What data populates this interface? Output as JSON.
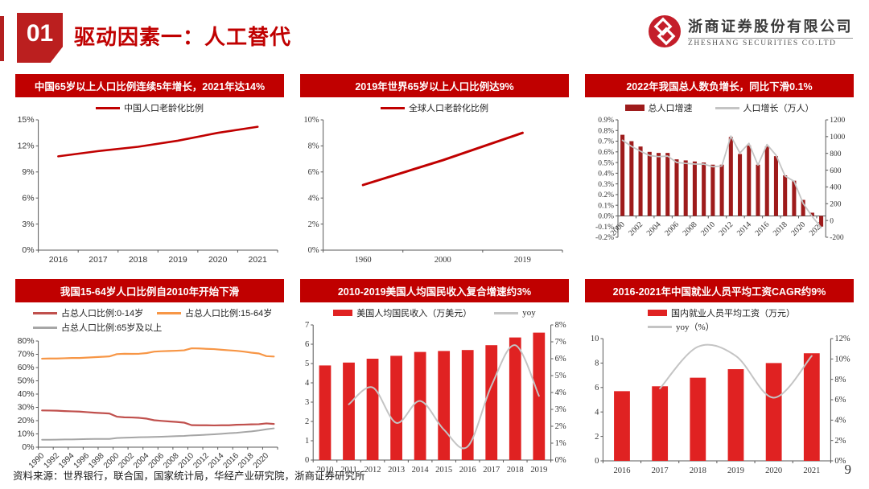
{
  "header": {
    "badge": "01",
    "title": "驱动因素一：人工替代"
  },
  "logo": {
    "cn": "浙商证券股份有限公司",
    "en": "ZHESHANG SECURITIES CO.LTD"
  },
  "footer": {
    "source": "资料来源：世界银行，联合国，国家统计局，华经产业研究院，浙商证券研究所",
    "page": "9"
  },
  "colors": {
    "accent": "#c00000",
    "dark_bar": "#9e1b1b",
    "bright_bar": "#e02222",
    "gray_line": "#c4c4c4",
    "soft_red": "#c0504d",
    "orange": "#f79646",
    "gray": "#a6a6a6"
  },
  "chart_data": [
    {
      "id": "china-aging-ratio",
      "type": "line",
      "title": "中国65岁以上人口比例连续5年增长，2021年达14%",
      "font": "sans",
      "legend_layout": "center",
      "legend": [
        {
          "label": "中国人口老龄化比例",
          "color": "#c00000",
          "type": "line"
        }
      ],
      "x": [
        "2016",
        "2017",
        "2018",
        "2019",
        "2020",
        "2021"
      ],
      "ylim": [
        0,
        15
      ],
      "ystep": 3,
      "yfmt": "pct0",
      "series": [
        {
          "name": "中国人口老龄化比例",
          "type": "line",
          "color": "#c00000",
          "lw": 2.6,
          "values": [
            10.8,
            11.4,
            11.9,
            12.6,
            13.5,
            14.2
          ]
        }
      ]
    },
    {
      "id": "world-aging-ratio",
      "type": "line",
      "title": "2019年世界65岁以上人口比例达9%",
      "font": "serif",
      "legend_layout": "center",
      "legend": [
        {
          "label": "全球人口老龄化比例",
          "color": "#c00000",
          "type": "line"
        }
      ],
      "x": [
        "1960",
        "2000",
        "2019"
      ],
      "ylim": [
        0,
        10
      ],
      "ystep": 2,
      "yfmt": "pct0",
      "series": [
        {
          "name": "全球人口老龄化比例",
          "type": "line",
          "color": "#c00000",
          "lw": 3,
          "values": [
            5.0,
            6.9,
            9.0
          ]
        }
      ]
    },
    {
      "id": "china-pop-growth",
      "type": "combo",
      "title": "2022年我国总人数负增长，同比下滑0.1%",
      "font": "serif",
      "legend_layout": "center",
      "small_y": true,
      "legend": [
        {
          "label": "总人口增速",
          "color": "#9e1b1b",
          "type": "bar"
        },
        {
          "label": "人口增长（万人）",
          "color": "#c4c4c4",
          "type": "line"
        }
      ],
      "x": [
        "2000",
        "2001",
        "2002",
        "2003",
        "2004",
        "2005",
        "2006",
        "2007",
        "2008",
        "2009",
        "2010",
        "2011",
        "2012",
        "2013",
        "2014",
        "2015",
        "2016",
        "2017",
        "2018",
        "2019",
        "2020",
        "2021",
        "2022"
      ],
      "xticks": [
        "2000",
        "2002",
        "2004",
        "2006",
        "2008",
        "2010",
        "2012",
        "2014",
        "2016",
        "2018",
        "2020",
        "2022"
      ],
      "rotate_x": true,
      "xtick_every": 2,
      "xaxis_at": 0,
      "ylim": [
        -0.2,
        0.9
      ],
      "ystep": 0.1,
      "yfmt": "pct1",
      "y2lim": [
        -200,
        1200
      ],
      "y2step": 200,
      "y2fmt": "num",
      "series": [
        {
          "name": "总人口增速",
          "type": "bar",
          "color": "#9e1b1b",
          "axis": "left",
          "barw": 0.45,
          "values": [
            0.76,
            0.7,
            0.65,
            0.6,
            0.59,
            0.59,
            0.53,
            0.52,
            0.51,
            0.5,
            0.48,
            0.48,
            0.74,
            0.58,
            0.66,
            0.48,
            0.65,
            0.56,
            0.38,
            0.33,
            0.15,
            0.03,
            -0.1
          ]
        },
        {
          "name": "人口增长（万人）",
          "type": "line",
          "color": "#c4c4c4",
          "axis": "right",
          "lw": 1.8,
          "values": [
            957,
            884,
            826,
            774,
            761,
            768,
            692,
            681,
            673,
            672,
            641,
            650,
            1006,
            804,
            920,
            660,
            906,
            779,
            530,
            467,
            204,
            48,
            -85
          ]
        }
      ]
    },
    {
      "id": "china-age-structure",
      "type": "line",
      "title": "我国15-64岁人口比例自2010年开始下滑",
      "font": "sans",
      "legend_layout": "grid2",
      "legend_sans": true,
      "legend": [
        {
          "label": "占总人口比例:0-14岁",
          "color": "#c0504d",
          "type": "line"
        },
        {
          "label": "占总人口比例:15-64岁",
          "color": "#f79646",
          "type": "line"
        },
        {
          "label": "占总人口比例:65岁及以上",
          "color": "#a6a6a6",
          "type": "line"
        }
      ],
      "x": [
        "1990",
        "1991",
        "1992",
        "1993",
        "1994",
        "1995",
        "1996",
        "1997",
        "1998",
        "1999",
        "2000",
        "2001",
        "2002",
        "2003",
        "2004",
        "2005",
        "2006",
        "2007",
        "2008",
        "2009",
        "2010",
        "2011",
        "2012",
        "2013",
        "2014",
        "2015",
        "2016",
        "2017",
        "2018",
        "2019",
        "2020",
        "2021"
      ],
      "xticks": [
        "1990",
        "1992",
        "1994",
        "1996",
        "1998",
        "2000",
        "2002",
        "2004",
        "2006",
        "2008",
        "2010",
        "2012",
        "2014",
        "2016",
        "2018",
        "2020"
      ],
      "rotate_x": true,
      "xtick_every": 2,
      "ylim": [
        0,
        80
      ],
      "ystep": 10,
      "yfmt": "pct0",
      "series": [
        {
          "name": "占总人口比例:0-14岁",
          "type": "line",
          "color": "#c0504d",
          "lw": 2.2,
          "values": [
            27.7,
            27.6,
            27.5,
            27.2,
            27.0,
            26.8,
            26.4,
            26.0,
            25.7,
            25.4,
            23.0,
            22.5,
            22.4,
            22.1,
            21.5,
            20.3,
            19.8,
            19.4,
            19.0,
            18.5,
            16.6,
            16.5,
            16.5,
            16.4,
            16.5,
            16.5,
            16.9,
            17.0,
            17.2,
            17.3,
            17.9,
            17.5
          ]
        },
        {
          "name": "占总人口比例:15-64岁",
          "type": "line",
          "color": "#f79646",
          "lw": 2.2,
          "values": [
            66.7,
            66.8,
            66.8,
            67.0,
            67.2,
            67.2,
            67.5,
            67.8,
            68.1,
            68.4,
            70.1,
            70.4,
            70.3,
            70.4,
            70.9,
            72.0,
            72.3,
            72.5,
            72.7,
            73.0,
            74.5,
            74.4,
            74.1,
            73.9,
            73.4,
            73.0,
            72.6,
            72.0,
            71.2,
            70.6,
            68.6,
            68.3
          ]
        },
        {
          "name": "占总人口比例:65岁及以上",
          "type": "line",
          "color": "#a6a6a6",
          "lw": 2,
          "values": [
            5.6,
            5.6,
            5.7,
            5.8,
            5.8,
            6.0,
            6.1,
            6.2,
            6.2,
            6.2,
            6.9,
            7.1,
            7.3,
            7.5,
            7.6,
            7.7,
            7.9,
            8.1,
            8.3,
            8.5,
            8.9,
            9.1,
            9.4,
            9.7,
            10.1,
            10.5,
            10.8,
            11.4,
            11.9,
            12.6,
            13.5,
            14.2
          ]
        }
      ]
    },
    {
      "id": "us-income",
      "type": "combo",
      "title": "2010-2019美国人均国民收入复合增速约3%",
      "font": "serif",
      "legend_layout": "center",
      "legend": [
        {
          "label": "美国人均国民收入（万美元）",
          "color": "#e02222",
          "type": "bar"
        },
        {
          "label": "yoy",
          "color": "#c4c4c4",
          "type": "line"
        }
      ],
      "x": [
        "2010",
        "2011",
        "2012",
        "2013",
        "2014",
        "2015",
        "2016",
        "2017",
        "2018",
        "2019"
      ],
      "ylim": [
        0,
        7
      ],
      "ystep": 1,
      "yfmt": "num",
      "y2lim": [
        0,
        8
      ],
      "y2step": 1,
      "y2fmt": "pct0",
      "series": [
        {
          "name": "美国人均国民收入（万美元）",
          "type": "bar",
          "color": "#e02222",
          "axis": "left",
          "barw": 0.5,
          "values": [
            4.9,
            5.05,
            5.25,
            5.4,
            5.6,
            5.65,
            5.7,
            5.95,
            6.35,
            6.6
          ]
        },
        {
          "name": "yoy",
          "type": "line",
          "color": "#c4c4c4",
          "axis": "right",
          "lw": 2,
          "smooth": true,
          "values": [
            null,
            3.3,
            4.3,
            2.2,
            3.5,
            1.8,
            0.8,
            4.4,
            6.8,
            3.8
          ]
        }
      ]
    },
    {
      "id": "china-wage",
      "type": "combo",
      "title": "2016-2021年中国就业人员平均工资CAGR约9%",
      "font": "serif",
      "legend_layout": "leftcol",
      "legend": [
        {
          "label": "国内就业人员平均工资（万元）",
          "color": "#e02222",
          "type": "bar"
        },
        {
          "label": "yoy（%）",
          "color": "#c4c4c4",
          "type": "line"
        }
      ],
      "x": [
        "2016",
        "2017",
        "2018",
        "2019",
        "2020",
        "2021"
      ],
      "ylim": [
        0,
        10
      ],
      "ystep": 2,
      "yfmt": "num",
      "y2lim": [
        0,
        12
      ],
      "y2step": 2,
      "y2fmt": "pct0",
      "series": [
        {
          "name": "国内就业人员平均工资（万元）",
          "type": "bar",
          "color": "#e02222",
          "axis": "left",
          "barw": 0.42,
          "values": [
            5.7,
            6.1,
            6.8,
            7.5,
            8.0,
            8.8
          ]
        },
        {
          "name": "yoy（%）",
          "type": "line",
          "color": "#c4c4c4",
          "axis": "right",
          "lw": 2,
          "smooth": true,
          "values": [
            null,
            7.1,
            11.2,
            10.3,
            6.2,
            10.3
          ]
        }
      ]
    }
  ]
}
